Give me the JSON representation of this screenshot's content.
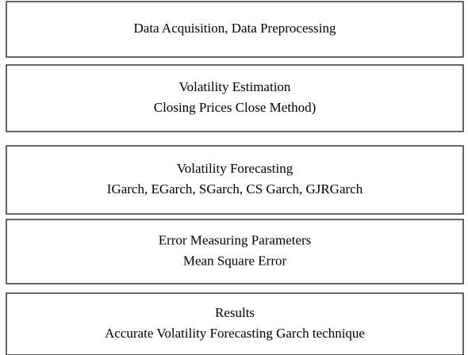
{
  "nodes": [
    {
      "lines": [
        "Data Acquisition, Data Preprocessing"
      ]
    },
    {
      "lines": [
        "Volatility Estimation",
        "Closing Prices Close Method)"
      ]
    },
    {
      "lines": [
        "Volatility Forecasting",
        "IGarch, EGarch, SGarch, CS Garch, GJRGarch"
      ]
    },
    {
      "lines": [
        "Error Measuring Parameters",
        "Mean Square Error"
      ]
    },
    {
      "lines": [
        "Results",
        "Accurate Volatility Forecasting Garch technique"
      ]
    }
  ]
}
